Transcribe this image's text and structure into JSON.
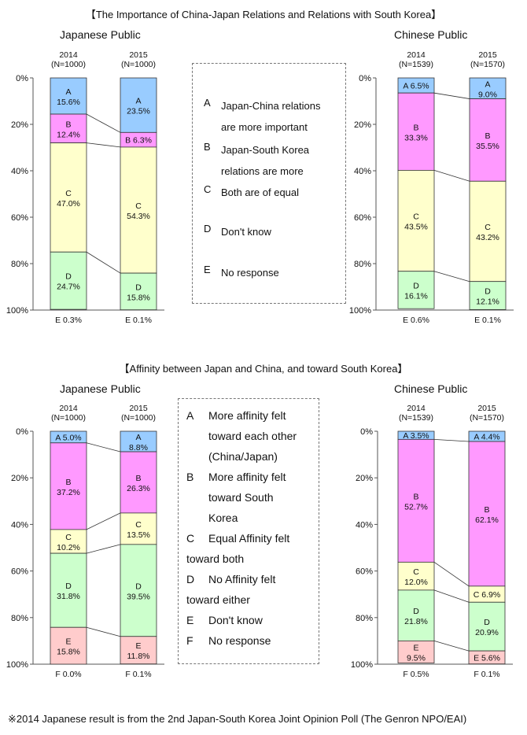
{
  "section1": {
    "title": "【The Importance of China-Japan Relations and Relations with South Korea】",
    "legend": [
      {
        "letter": "A",
        "lines": [
          "Japan-China relations",
          "are more important"
        ]
      },
      {
        "letter": "B",
        "lines": [
          "Japan-South Korea",
          "relations are more"
        ]
      },
      {
        "letter": "C",
        "lines": [
          "Both are of equal"
        ]
      },
      {
        "letter": "D",
        "lines": [
          "Don't know"
        ]
      },
      {
        "letter": "E",
        "lines": [
          "No response"
        ]
      }
    ]
  },
  "section2": {
    "title": "【Affinity between Japan and China, and toward South Korea】",
    "legend": [
      {
        "letter": "A",
        "lines": [
          "More affinity felt",
          "toward each other",
          "(China/Japan)"
        ]
      },
      {
        "letter": "B",
        "lines": [
          "More affinity felt",
          "toward South",
          "Korea"
        ]
      },
      {
        "letter": "C",
        "lines": [
          "Equal Affinity felt",
          "toward both"
        ]
      },
      {
        "letter": "D",
        "lines": [
          "No Affinity felt",
          "toward either"
        ]
      },
      {
        "letter": "E",
        "lines": [
          "Don't know"
        ]
      },
      {
        "letter": "F",
        "lines": [
          "No response"
        ]
      }
    ]
  },
  "footnote": "※2014 Japanese result is from the 2nd Japan-South Korea Joint Opinion Poll (The Genron NPO/EAI)",
  "colors": {
    "A": "#99ccff",
    "B": "#ff99ff",
    "C": "#ffffcc",
    "D": "#ccffcc",
    "E": "#ffcccc",
    "F": "#ffffff"
  },
  "chart_data": [
    {
      "type": "bar",
      "stacked": true,
      "title": "Japanese Public",
      "y_ticks": [
        "0%",
        "20%",
        "40%",
        "60%",
        "80%",
        "100%"
      ],
      "ylim": [
        0,
        100
      ],
      "categories": [
        {
          "year": "2014",
          "n": "(N=1000)"
        },
        {
          "year": "2015",
          "n": "(N=1000)"
        }
      ],
      "series": [
        {
          "letter": "A",
          "values": [
            15.6,
            23.5
          ],
          "labels": [
            "15.6%",
            "23.5%"
          ]
        },
        {
          "letter": "B",
          "values": [
            12.4,
            6.3
          ],
          "labels": [
            "12.4%",
            "6.3%"
          ]
        },
        {
          "letter": "C",
          "values": [
            47.0,
            54.3
          ],
          "labels": [
            "47.0%",
            "54.3%"
          ]
        },
        {
          "letter": "D",
          "values": [
            24.7,
            15.8
          ],
          "labels": [
            "24.7%",
            "15.8%"
          ]
        },
        {
          "letter": "E",
          "values": [
            0.3,
            0.1
          ],
          "labels": [
            "0.3%",
            "0.1%"
          ]
        }
      ]
    },
    {
      "type": "bar",
      "stacked": true,
      "title": "Chinese Public",
      "y_ticks": [
        "0%",
        "20%",
        "40%",
        "60%",
        "80%",
        "100%"
      ],
      "ylim": [
        0,
        100
      ],
      "categories": [
        {
          "year": "2014",
          "n": "(N=1539)"
        },
        {
          "year": "2015",
          "n": "(N=1570)"
        }
      ],
      "series": [
        {
          "letter": "A",
          "values": [
            6.5,
            9.0
          ],
          "labels": [
            "6.5%",
            "9.0%"
          ]
        },
        {
          "letter": "B",
          "values": [
            33.3,
            35.5
          ],
          "labels": [
            "33.3%",
            "35.5%"
          ]
        },
        {
          "letter": "C",
          "values": [
            43.5,
            43.2
          ],
          "labels": [
            "43.5%",
            "43.2%"
          ]
        },
        {
          "letter": "D",
          "values": [
            16.1,
            12.1
          ],
          "labels": [
            "16.1%",
            "12.1%"
          ]
        },
        {
          "letter": "E",
          "values": [
            0.6,
            0.1
          ],
          "labels": [
            "0.6%",
            "0.1%"
          ]
        }
      ]
    },
    {
      "type": "bar",
      "stacked": true,
      "title": "Japanese Public",
      "y_ticks": [
        "0%",
        "20%",
        "40%",
        "60%",
        "80%",
        "100%"
      ],
      "ylim": [
        0,
        100
      ],
      "categories": [
        {
          "year": "2014",
          "n": "(N=1000)"
        },
        {
          "year": "2015",
          "n": "(N=1000)"
        }
      ],
      "series": [
        {
          "letter": "A",
          "values": [
            5.0,
            8.8
          ],
          "labels": [
            "5.0%",
            "8.8%"
          ]
        },
        {
          "letter": "B",
          "values": [
            37.2,
            26.3
          ],
          "labels": [
            "37.2%",
            "26.3%"
          ]
        },
        {
          "letter": "C",
          "values": [
            10.2,
            13.5
          ],
          "labels": [
            "10.2%",
            "13.5%"
          ]
        },
        {
          "letter": "D",
          "values": [
            31.8,
            39.5
          ],
          "labels": [
            "31.8%",
            "39.5%"
          ]
        },
        {
          "letter": "E",
          "values": [
            15.8,
            11.8
          ],
          "labels": [
            "15.8%",
            "11.8%"
          ]
        },
        {
          "letter": "F",
          "values": [
            0.0,
            0.1
          ],
          "labels": [
            "0.0%",
            "0.1%"
          ]
        }
      ]
    },
    {
      "type": "bar",
      "stacked": true,
      "title": "Chinese Public",
      "y_ticks": [
        "0%",
        "20%",
        "40%",
        "60%",
        "80%",
        "100%"
      ],
      "ylim": [
        0,
        100
      ],
      "categories": [
        {
          "year": "2014",
          "n": "(N=1539)"
        },
        {
          "year": "2015",
          "n": "(N=1570)"
        }
      ],
      "series": [
        {
          "letter": "A",
          "values": [
            3.5,
            4.4
          ],
          "labels": [
            "3.5%",
            "4.4%"
          ]
        },
        {
          "letter": "B",
          "values": [
            52.7,
            62.1
          ],
          "labels": [
            "52.7%",
            "62.1%"
          ]
        },
        {
          "letter": "C",
          "values": [
            12.0,
            6.9
          ],
          "labels": [
            "12.0%",
            "6.9%"
          ]
        },
        {
          "letter": "D",
          "values": [
            21.8,
            20.9
          ],
          "labels": [
            "21.8%",
            "20.9%"
          ]
        },
        {
          "letter": "E",
          "values": [
            9.5,
            5.6
          ],
          "labels": [
            "9.5%",
            "5.6%"
          ]
        },
        {
          "letter": "F",
          "values": [
            0.5,
            0.1
          ],
          "labels": [
            "0.5%",
            "0.1%"
          ]
        }
      ]
    }
  ]
}
